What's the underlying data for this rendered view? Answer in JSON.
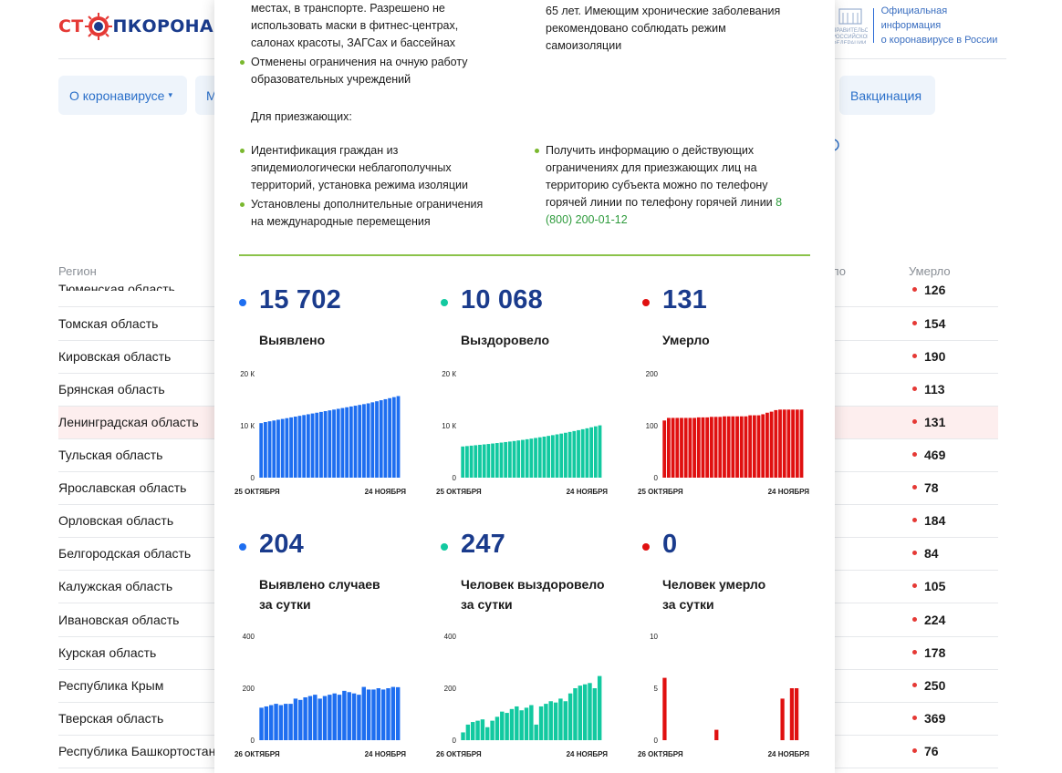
{
  "header": {
    "logo_part1": "СТ",
    "logo_part2": "ПКОРОНАВИ",
    "gov_line1": "Официальная информация",
    "gov_line2": "о коронавирусе в России",
    "emblem_text": "ПРАВИТЕЛЬСТВО РОССИЙСКОЙ ФЕДЕРАЦИИ"
  },
  "nav": {
    "about": "О коронавирусе",
    "about_arrow": "▾",
    "partial": "М",
    "vaccination": "Вакцинация"
  },
  "table": {
    "col_region": "Регион",
    "col_partial": "ло",
    "col_died": "Умерло",
    "rows": [
      {
        "name": "Тюменская область",
        "died": "126"
      },
      {
        "name": "Томская область",
        "died": "154"
      },
      {
        "name": "Кировская область",
        "died": "190"
      },
      {
        "name": "Брянская область",
        "died": "113"
      },
      {
        "name": "Ленинградская область",
        "died": "131",
        "highlight": true
      },
      {
        "name": "Тульская область",
        "died": "469"
      },
      {
        "name": "Ярославская область",
        "died": "78"
      },
      {
        "name": "Орловская область",
        "died": "184"
      },
      {
        "name": "Белгородская область",
        "died": "84"
      },
      {
        "name": "Калужская область",
        "died": "105"
      },
      {
        "name": "Ивановская область",
        "died": "224"
      },
      {
        "name": "Курская область",
        "died": "178"
      },
      {
        "name": "Республика Крым",
        "died": "250"
      },
      {
        "name": "Тверская область",
        "died": "369"
      },
      {
        "name": "Республика Башкортостан",
        "died": "76"
      }
    ]
  },
  "panel": {
    "top_left_text": "местах, в транспорте. Разрешено не использовать маски в фитнес-центрах, салонах красоты, ЗАГСах и бассейнах",
    "top_left_bullet": "Отменены ограничения на очную работу образовательных учреждений",
    "top_right_text": "65 лет. Имеющим хронические заболевания рекомендовано соблюдать режим самоизоляции",
    "arrivals_heading": "Для приезжающих:",
    "arrivals_bullet1": "Идентификация граждан из эпидемиологически неблагополучных территорий, установка режима изоляции",
    "arrivals_bullet2": "Установлены дополнительные ограничения на международные перемещения",
    "arrivals_right": "Получить информацию о действующих ограничениях для приезжающих лиц на территорию субъекта можно по телефону горячей линии по телефону горячей линии",
    "hotline": "8 (800) 200-01-12"
  },
  "stats": [
    {
      "value": "15 702",
      "label1": "Выявлено",
      "label2": "",
      "color": "#1e6ef0"
    },
    {
      "value": "10 068",
      "label1": "Выздоровело",
      "label2": "",
      "color": "#12c9a0"
    },
    {
      "value": "131",
      "label1": "Умерло",
      "label2": "",
      "color": "#e01010"
    },
    {
      "value": "204",
      "label1": "Выявлено случаев",
      "label2": "за сутки",
      "color": "#1e6ef0"
    },
    {
      "value": "247",
      "label1": "Человек выздоровело",
      "label2": "за сутки",
      "color": "#12c9a0"
    },
    {
      "value": "0",
      "label1": "Человек умерло",
      "label2": "за сутки",
      "color": "#e01010"
    }
  ],
  "chart_data": [
    {
      "type": "bar",
      "title": "Выявлено",
      "x_start": "25 ОКТЯБРЯ",
      "x_end": "24 НОЯБРЯ",
      "yticks": [
        "0",
        "10 К",
        "20 К"
      ],
      "ylim": [
        0,
        20000
      ],
      "color": "#1e6ef0",
      "values": [
        10500,
        10700,
        10850,
        11000,
        11150,
        11300,
        11450,
        11600,
        11750,
        11900,
        12050,
        12200,
        12350,
        12500,
        12650,
        12800,
        12950,
        13100,
        13250,
        13400,
        13550,
        13700,
        13850,
        14000,
        14150,
        14300,
        14500,
        14700,
        14900,
        15100,
        15300,
        15500,
        15702
      ]
    },
    {
      "type": "bar",
      "title": "Выздоровело",
      "x_start": "25 ОКТЯБРЯ",
      "x_end": "24 НОЯБРЯ",
      "yticks": [
        "0",
        "10 К",
        "20 К"
      ],
      "ylim": [
        0,
        20000
      ],
      "color": "#12c9a0",
      "values": [
        6000,
        6080,
        6160,
        6240,
        6320,
        6400,
        6480,
        6570,
        6660,
        6750,
        6850,
        6950,
        7050,
        7160,
        7270,
        7390,
        7510,
        7640,
        7770,
        7900,
        8040,
        8180,
        8330,
        8480,
        8640,
        8800,
        8970,
        9140,
        9320,
        9500,
        9690,
        9880,
        10068
      ]
    },
    {
      "type": "bar",
      "title": "Умерло",
      "x_start": "25 ОКТЯБРЯ",
      "x_end": "24 НОЯБРЯ",
      "yticks": [
        "0",
        "100",
        "200"
      ],
      "ylim": [
        0,
        200
      ],
      "color": "#e01010",
      "values": [
        110,
        115,
        115,
        115,
        115,
        115,
        115,
        115,
        116,
        116,
        116,
        117,
        117,
        117,
        118,
        118,
        118,
        118,
        118,
        118,
        120,
        120,
        120,
        122,
        125,
        127,
        130,
        131,
        131,
        131,
        131,
        131,
        131
      ]
    },
    {
      "type": "bar",
      "title": "Выявлено случаев за сутки",
      "x_start": "26 ОКТЯБРЯ",
      "x_end": "24 НОЯБРЯ",
      "yticks": [
        "0",
        "200",
        "400"
      ],
      "ylim": [
        0,
        400
      ],
      "color": "#1e6ef0",
      "values": [
        125,
        130,
        135,
        140,
        135,
        140,
        140,
        160,
        155,
        165,
        170,
        175,
        160,
        170,
        175,
        180,
        175,
        190,
        185,
        180,
        175,
        205,
        195,
        195,
        200,
        195,
        200,
        205,
        204
      ]
    },
    {
      "type": "bar",
      "title": "Человек выздоровело за сутки",
      "x_start": "26 ОКТЯБРЯ",
      "x_end": "24 НОЯБРЯ",
      "yticks": [
        "0",
        "200",
        "400"
      ],
      "ylim": [
        0,
        400
      ],
      "color": "#12c9a0",
      "values": [
        30,
        60,
        70,
        75,
        80,
        50,
        75,
        90,
        110,
        105,
        120,
        130,
        115,
        125,
        135,
        60,
        130,
        140,
        150,
        145,
        160,
        150,
        180,
        200,
        210,
        215,
        220,
        200,
        247
      ]
    },
    {
      "type": "bar",
      "title": "Человек умерло за сутки",
      "x_start": "26 ОКТЯБРЯ",
      "x_end": "24 НОЯБРЯ",
      "yticks": [
        "0",
        "5",
        "10"
      ],
      "ylim": [
        0,
        10
      ],
      "color": "#e01010",
      "values": [
        6,
        0,
        0,
        0,
        0,
        0,
        0,
        0,
        0,
        0,
        0,
        1,
        0,
        0,
        0,
        0,
        0,
        0,
        0,
        0,
        0,
        0,
        0,
        0,
        0,
        4,
        0,
        5,
        5,
        0
      ]
    }
  ]
}
